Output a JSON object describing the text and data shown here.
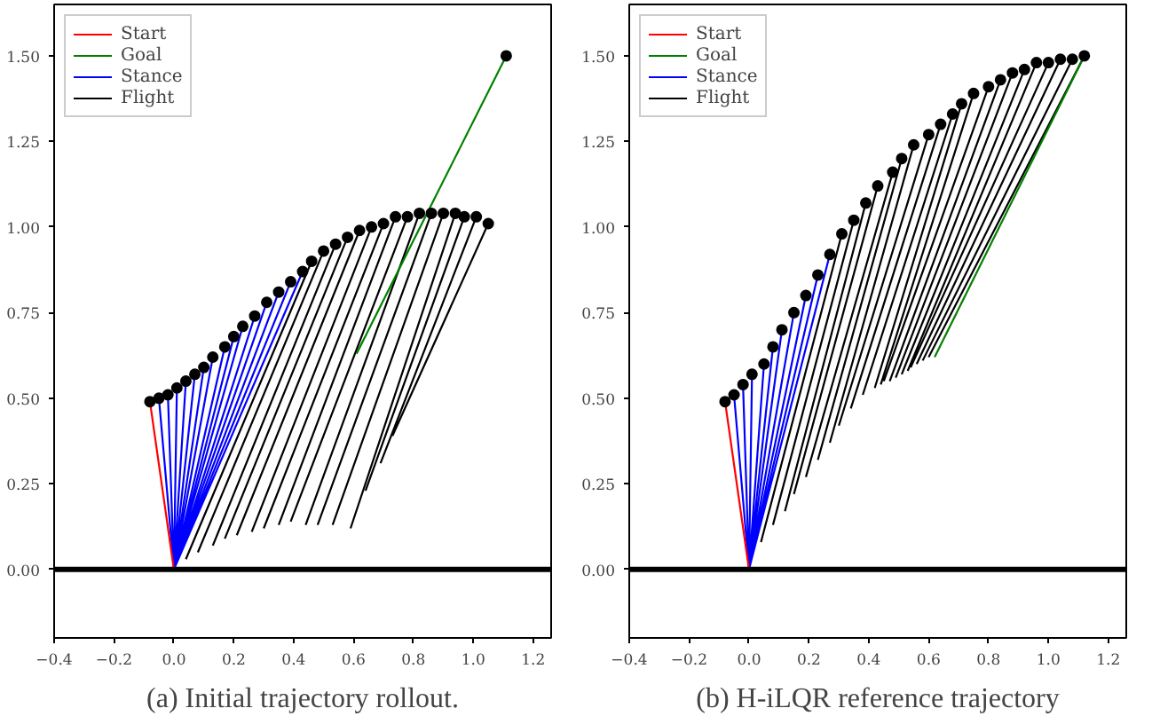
{
  "chart_data": [
    {
      "type": "line",
      "title": "(a) Initial trajectory rollout.",
      "xlim": [
        -0.4,
        1.26
      ],
      "ylim": [
        -0.2,
        1.65
      ],
      "xticks": [
        {
          "value": -0.4,
          "label": "−0.4"
        },
        {
          "value": -0.2,
          "label": "−0.2"
        },
        {
          "value": 0,
          "label": "0.0"
        },
        0.2,
        0.4,
        0.6,
        0.8,
        {
          "value": 1,
          "label": "1.0"
        },
        1.2
      ],
      "yticks": [
        {
          "value": 0,
          "label": "0.00"
        },
        0.25,
        {
          "value": 0.5,
          "label": "0.50"
        },
        0.75,
        {
          "value": 1,
          "label": "1.00"
        },
        1.25,
        {
          "value": 1.5,
          "label": "1.50"
        }
      ],
      "grid": false,
      "legend": "top left",
      "marker": "none",
      "line_style": "solid",
      "ref_lines": [
        {
          "axis": "y",
          "value": 0,
          "color": "#000000"
        }
      ],
      "series": [
        {
          "name": "Start",
          "color": "#ff0000",
          "x": [
            -0.08,
            0.0
          ],
          "values": [
            0.49,
            0.0
          ]
        },
        {
          "name": "Goal",
          "color": "#008000",
          "x": [
            1.11,
            0.61
          ],
          "values": [
            1.5,
            0.63
          ]
        },
        {
          "name": "Stance",
          "color": "#0000ff",
          "x": [
            0.0,
            -0.05,
            null,
            0.0,
            -0.02,
            null,
            0.0,
            0.01,
            null,
            0.0,
            0.04,
            null,
            0.0,
            0.07,
            null,
            0.0,
            0.1,
            null,
            0.0,
            0.13,
            null,
            0.0,
            0.17,
            null,
            0.0,
            0.2,
            null,
            0.0,
            0.23,
            null,
            0.0,
            0.27,
            null,
            0.0,
            0.31,
            null,
            0.0,
            0.35,
            null,
            0.0,
            0.39,
            null,
            0.0,
            0.43
          ],
          "values": [
            0.0,
            0.5,
            null,
            0.0,
            0.51,
            null,
            0.0,
            0.53,
            null,
            0.0,
            0.55,
            null,
            0.0,
            0.57,
            null,
            0.0,
            0.59,
            null,
            0.0,
            0.62,
            null,
            0.0,
            0.65,
            null,
            0.0,
            0.68,
            null,
            0.0,
            0.71,
            null,
            0.0,
            0.74,
            null,
            0.0,
            0.78,
            null,
            0.0,
            0.81,
            null,
            0.0,
            0.84,
            null,
            0.0,
            0.87
          ]
        },
        {
          "name": "Flight",
          "color": "#000000",
          "x": [
            0.46,
            0.04,
            null,
            0.5,
            0.08,
            null,
            0.54,
            0.13,
            null,
            0.58,
            0.17,
            null,
            0.62,
            0.21,
            null,
            0.66,
            0.26,
            null,
            0.7,
            0.3,
            null,
            0.74,
            0.35,
            null,
            0.78,
            0.39,
            null,
            0.82,
            0.44,
            null,
            0.86,
            0.48,
            null,
            0.9,
            0.53,
            null,
            0.94,
            0.59,
            null,
            0.97,
            0.64,
            null,
            1.01,
            0.69,
            null,
            1.05,
            0.73
          ],
          "values": [
            0.9,
            0.03,
            null,
            0.93,
            0.05,
            null,
            0.95,
            0.07,
            null,
            0.97,
            0.09,
            null,
            0.99,
            0.1,
            null,
            1.0,
            0.11,
            null,
            1.01,
            0.12,
            null,
            1.03,
            0.13,
            null,
            1.03,
            0.14,
            null,
            1.04,
            0.13,
            null,
            1.04,
            0.13,
            null,
            1.04,
            0.13,
            null,
            1.04,
            0.12,
            null,
            1.03,
            0.23,
            null,
            1.03,
            0.31,
            null,
            1.01,
            0.39
          ]
        },
        {
          "type": "scatter",
          "marker": "circle",
          "color": "#000000",
          "x": [
            -0.08,
            -0.05,
            -0.02,
            0.01,
            0.04,
            0.07,
            0.1,
            0.13,
            0.17,
            0.2,
            0.23,
            0.27,
            0.31,
            0.35,
            0.39,
            0.43,
            0.46,
            0.5,
            0.54,
            0.58,
            0.62,
            0.66,
            0.7,
            0.74,
            0.78,
            0.82,
            0.86,
            0.9,
            0.94,
            0.97,
            1.01,
            1.05,
            1.11
          ],
          "values": [
            0.49,
            0.5,
            0.51,
            0.53,
            0.55,
            0.57,
            0.59,
            0.62,
            0.65,
            0.68,
            0.71,
            0.74,
            0.78,
            0.81,
            0.84,
            0.87,
            0.9,
            0.93,
            0.95,
            0.97,
            0.99,
            1.0,
            1.01,
            1.03,
            1.03,
            1.04,
            1.04,
            1.04,
            1.04,
            1.03,
            1.03,
            1.01,
            1.5
          ]
        }
      ]
    },
    {
      "type": "line",
      "title": "(b) H-iLQR reference trajectory",
      "xlim": [
        -0.4,
        1.26
      ],
      "ylim": [
        -0.2,
        1.65
      ],
      "xticks": [
        {
          "value": -0.4,
          "label": "−0.4"
        },
        {
          "value": -0.2,
          "label": "−0.2"
        },
        {
          "value": 0,
          "label": "0.0"
        },
        0.2,
        0.4,
        0.6,
        0.8,
        {
          "value": 1,
          "label": "1.0"
        },
        1.2
      ],
      "yticks": [
        {
          "value": 0,
          "label": "0.00"
        },
        0.25,
        {
          "value": 0.5,
          "label": "0.50"
        },
        0.75,
        {
          "value": 1,
          "label": "1.00"
        },
        1.25,
        {
          "value": 1.5,
          "label": "1.50"
        }
      ],
      "grid": false,
      "legend": "top left",
      "marker": "none",
      "line_style": "solid",
      "ref_lines": [
        {
          "axis": "y",
          "value": 0,
          "color": "#000000"
        }
      ],
      "series": [
        {
          "name": "Start",
          "color": "#ff0000",
          "x": [
            -0.08,
            0.0
          ],
          "values": [
            0.49,
            0.0
          ]
        },
        {
          "name": "Goal",
          "color": "#008000",
          "x": [
            1.12,
            0.62
          ],
          "values": [
            1.5,
            0.62
          ]
        },
        {
          "name": "Stance",
          "color": "#0000ff",
          "x": [
            0.0,
            -0.05,
            null,
            0.0,
            -0.02,
            null,
            0.0,
            0.01,
            null,
            0.0,
            0.05,
            null,
            0.0,
            0.08,
            null,
            0.0,
            0.11,
            null,
            0.0,
            0.15,
            null,
            0.0,
            0.19,
            null,
            0.0,
            0.23,
            null,
            0.0,
            0.27
          ],
          "values": [
            0.0,
            0.51,
            null,
            0.0,
            0.54,
            null,
            0.0,
            0.57,
            null,
            0.0,
            0.6,
            null,
            0.0,
            0.65,
            null,
            0.0,
            0.7,
            null,
            0.0,
            0.75,
            null,
            0.0,
            0.8,
            null,
            0.0,
            0.86,
            null,
            0.0,
            0.92
          ]
        },
        {
          "name": "Flight",
          "color": "#000000",
          "x": [
            0.31,
            0.04,
            null,
            0.35,
            0.08,
            null,
            0.39,
            0.12,
            null,
            0.43,
            0.15,
            null,
            0.48,
            0.19,
            null,
            0.51,
            0.23,
            null,
            0.55,
            0.27,
            null,
            0.6,
            0.3,
            null,
            0.64,
            0.34,
            null,
            0.68,
            0.38,
            null,
            0.71,
            0.42,
            null,
            0.75,
            0.44,
            null,
            0.8,
            0.45,
            null,
            0.84,
            0.47,
            null,
            0.88,
            0.49,
            null,
            0.92,
            0.51,
            null,
            0.96,
            0.53,
            null,
            1.0,
            0.54,
            null,
            1.04,
            0.56,
            null,
            1.08,
            0.58,
            null,
            1.12,
            0.6
          ],
          "values": [
            0.98,
            0.08,
            null,
            1.02,
            0.13,
            null,
            1.07,
            0.17,
            null,
            1.12,
            0.22,
            null,
            1.16,
            0.27,
            null,
            1.2,
            0.32,
            null,
            1.24,
            0.37,
            null,
            1.27,
            0.42,
            null,
            1.3,
            0.47,
            null,
            1.33,
            0.51,
            null,
            1.36,
            0.53,
            null,
            1.39,
            0.54,
            null,
            1.41,
            0.55,
            null,
            1.43,
            0.55,
            null,
            1.45,
            0.56,
            null,
            1.46,
            0.57,
            null,
            1.48,
            0.58,
            null,
            1.48,
            0.59,
            null,
            1.49,
            0.6,
            null,
            1.49,
            0.61,
            null,
            1.5,
            0.62
          ]
        },
        {
          "type": "scatter",
          "marker": "circle",
          "color": "#000000",
          "x": [
            -0.08,
            -0.05,
            -0.02,
            0.01,
            0.05,
            0.08,
            0.11,
            0.15,
            0.19,
            0.23,
            0.27,
            0.31,
            0.35,
            0.39,
            0.43,
            0.48,
            0.51,
            0.55,
            0.6,
            0.64,
            0.68,
            0.71,
            0.75,
            0.8,
            0.84,
            0.88,
            0.92,
            0.96,
            1.0,
            1.04,
            1.08,
            1.12
          ],
          "values": [
            0.49,
            0.51,
            0.54,
            0.57,
            0.6,
            0.65,
            0.7,
            0.75,
            0.8,
            0.86,
            0.92,
            0.98,
            1.02,
            1.07,
            1.12,
            1.16,
            1.2,
            1.24,
            1.27,
            1.3,
            1.33,
            1.36,
            1.39,
            1.41,
            1.43,
            1.45,
            1.46,
            1.48,
            1.48,
            1.49,
            1.49,
            1.5
          ]
        }
      ]
    }
  ]
}
